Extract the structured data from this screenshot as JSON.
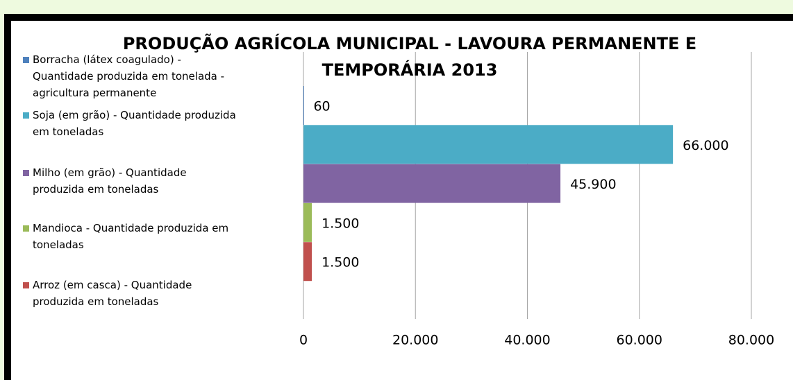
{
  "chart_data": {
    "type": "bar",
    "orientation": "horizontal",
    "title": "PRODUÇÃO AGRÍCOLA MUNICIPAL - LAVOURA PERMANENTE E TEMPORÁRIA 2013",
    "series": [
      {
        "name": "Borracha (látex coagulado) - Quantidade produzida em tonelada - agricultura permanente",
        "color": "#4f81bd",
        "values": [
          60
        ],
        "value_labels": [
          "60"
        ]
      },
      {
        "name": "Soja (em grão) - Quantidade produzida em toneladas",
        "color": "#4bacc6",
        "values": [
          66000
        ],
        "value_labels": [
          "66.000"
        ]
      },
      {
        "name": "Milho (em grão) - Quantidade produzida em toneladas",
        "color": "#8064a2",
        "values": [
          45900
        ],
        "value_labels": [
          "45.900"
        ]
      },
      {
        "name": "Mandioca - Quantidade produzida em toneladas",
        "color": "#9bbb59",
        "values": [
          1500
        ],
        "value_labels": [
          "1.500"
        ]
      },
      {
        "name": "Arroz (em casca) - Quantidade produzida em toneladas",
        "color": "#c0504d",
        "values": [
          1500
        ],
        "value_labels": [
          "1.500"
        ]
      }
    ],
    "xlim": [
      0,
      80000
    ],
    "xticks": [
      0,
      {
        "value": 20000,
        "label": "20.000"
      },
      {
        "value": 40000,
        "label": "40.000"
      },
      {
        "value": 60000,
        "label": "60.000"
      },
      {
        "value": 80000,
        "label": "80.000"
      }
    ],
    "grid": true,
    "legend": "left"
  }
}
